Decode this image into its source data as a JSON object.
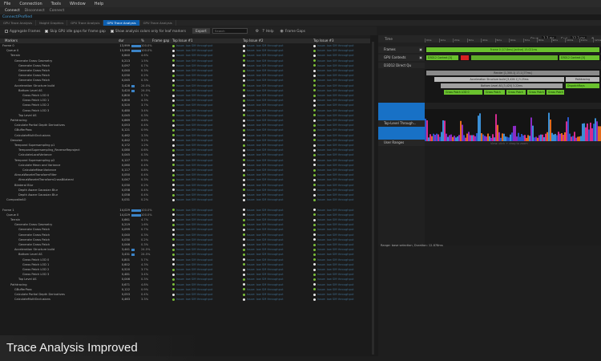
{
  "menu": [
    "File",
    "Connection",
    "Tools",
    "Window",
    "Help"
  ],
  "toolbar": [
    "Connect",
    "Disconnect",
    "Connect"
  ],
  "docbar": "Connect/Profiled",
  "tabs": [
    "GPU Trace Analysis",
    "Nsight Graphics",
    "GPU Trace Analysis",
    "GPU Trace Analysis",
    "GPU Trace Analysis"
  ],
  "options": {
    "o1": "Aggregate Frames",
    "o2": "Skip GPU idle gaps for frame gap",
    "o3": "Show analysis colors only for leaf markers",
    "export": "Export",
    "search_placeholder": "Search",
    "help": "Help",
    "footer_toggle": "Frame Gaps"
  },
  "columns": {
    "c0": "Markers",
    "c1": "dur",
    "c2": "%",
    "c3": "Frame gap",
    "c4": "Top Issue #1",
    "c5": "Top Issue #2",
    "c6": "Top Issue #3"
  },
  "tree": [
    {
      "n": "Frame 0",
      "i": 0,
      "v": "13,999",
      "p": "100.0%",
      "b": 1
    },
    {
      "n": "Queue 0",
      "i": 1,
      "v": "13,999",
      "p": "100.0%",
      "b": 1
    },
    {
      "n": "Terrain",
      "i": 2,
      "v": "0,640",
      "p": "4.6%"
    },
    {
      "n": "Generate Grass Geometry",
      "i": 3,
      "v": "0,213",
      "p": "1.5%",
      "d": "g"
    },
    {
      "n": "Generate Grass Patch",
      "i": 4,
      "v": "0,097",
      "p": "0.7%",
      "d": "w"
    },
    {
      "n": "Generate Grass Patch",
      "i": 4,
      "v": "0,040",
      "p": "0.3%",
      "d": "w"
    },
    {
      "n": "Generate Grass Patch",
      "i": 4,
      "v": "0,030",
      "p": "0.2%",
      "d": "w"
    },
    {
      "n": "Generate Grass Patch",
      "i": 4,
      "v": "0,045",
      "p": "0.3%",
      "d": "w"
    },
    {
      "n": "Acceleration Structure build",
      "i": 3,
      "v": "3,428",
      "p": "24.5%",
      "b": 0.35,
      "d": "g"
    },
    {
      "n": "Bottom Level AS",
      "i": 4,
      "v": "3,420",
      "p": "24.5%",
      "b": 0.35,
      "d": "g"
    },
    {
      "n": "Grass Patch LOD 0",
      "i": 5,
      "v": "0,800",
      "p": "5.7%",
      "d": "w"
    },
    {
      "n": "Grass Patch LOD 1",
      "i": 5,
      "v": "0,600",
      "p": "4.3%",
      "d": "w"
    },
    {
      "n": "Grass Patch LOD 2",
      "i": 5,
      "v": "0,520",
      "p": "3.7%",
      "d": "w"
    },
    {
      "n": "Grass Patch LOD 3",
      "i": 5,
      "v": "0,480",
      "p": "3.4%",
      "d": "w"
    },
    {
      "n": "Top Level AS",
      "i": 4,
      "v": "0,045",
      "p": "0.3%",
      "d": "g"
    },
    {
      "n": "Pathtracing",
      "i": 2,
      "v": "0,669",
      "p": "4.8%"
    },
    {
      "n": "Calculate Partial Depth Derivatives",
      "i": 3,
      "v": "0,053",
      "p": "0.4%",
      "d": "w"
    },
    {
      "n": "GBufferPass",
      "i": 3,
      "v": "0,121",
      "p": "0.9%",
      "d": "g"
    },
    {
      "n": "CalculateMultiOcclusions",
      "i": 3,
      "v": "0,462",
      "p": "3.3%",
      "d": "w"
    },
    {
      "n": "Denoise",
      "i": 2,
      "v": "0,442",
      "p": "3.2%"
    },
    {
      "n": "Temporal Supersampling p1",
      "i": 3,
      "v": "0,172",
      "p": "1.2%",
      "d": "w"
    },
    {
      "n": "TemporalSupersampling_ReverseReproject",
      "i": 4,
      "v": "0,080",
      "p": "0.6%",
      "d": "w"
    },
    {
      "n": "CalculateLocalVariance",
      "i": 4,
      "v": "0,045",
      "p": "0.3%",
      "d": "w"
    },
    {
      "n": "Temporal Supersampling p2",
      "i": 3,
      "v": "0,127",
      "p": "0.9%",
      "d": "w"
    },
    {
      "n": "Calculate Mean and Variance",
      "i": 4,
      "v": "0,060",
      "p": "0.4%",
      "d": "w"
    },
    {
      "n": "CalculateMeanVariance",
      "i": 5,
      "v": "0,117",
      "p": "0.8%",
      "d": "w"
    },
    {
      "n": "AtrousWaveletTransformFilter",
      "i": 3,
      "v": "0,050",
      "p": "0.4%",
      "d": "g"
    },
    {
      "n": "AtrousWaveletTransformCrossBilateral",
      "i": 4,
      "v": "0,047",
      "p": "0.3%",
      "d": "w"
    },
    {
      "n": "Bilateral Blur",
      "i": 3,
      "v": "0,030",
      "p": "0.2%",
      "d": "w"
    },
    {
      "n": "Depth Aware Gaussian Blur",
      "i": 4,
      "v": "0,058",
      "p": "0.4%",
      "d": "w"
    },
    {
      "n": "Depth Aware Gaussian Blur",
      "i": 4,
      "v": "0,058",
      "p": "0.4%",
      "d": "w"
    },
    {
      "n": "CompositeAO",
      "i": 1,
      "v": "0,031",
      "p": "0.2%"
    },
    {
      "n": "",
      "i": 0,
      "v": "",
      "p": ""
    },
    {
      "n": "Frame 1",
      "i": 0,
      "v": "14,029",
      "p": "100.0%",
      "b": 1
    },
    {
      "n": "Queue 0",
      "i": 1,
      "v": "14,029",
      "p": "100.0%",
      "b": 1
    },
    {
      "n": "Terrain",
      "i": 2,
      "v": "0,661",
      "p": "4.7%"
    },
    {
      "n": "Generate Grass Geometry",
      "i": 3,
      "v": "0,219",
      "p": "1.6%",
      "d": "g"
    },
    {
      "n": "Generate Grass Patch",
      "i": 4,
      "v": "0,099",
      "p": "0.7%",
      "d": "w"
    },
    {
      "n": "Generate Grass Patch",
      "i": 4,
      "v": "0,040",
      "p": "0.3%",
      "d": "w"
    },
    {
      "n": "Generate Grass Patch",
      "i": 4,
      "v": "0,030",
      "p": "0.2%",
      "d": "w"
    },
    {
      "n": "Generate Grass Patch",
      "i": 4,
      "v": "0,046",
      "p": "0.3%",
      "d": "w"
    },
    {
      "n": "Acceleration Structure build",
      "i": 3,
      "v": "3,441",
      "p": "24.5%",
      "b": 0.35,
      "d": "g"
    },
    {
      "n": "Bottom Level AS",
      "i": 4,
      "v": "3,431",
      "p": "24.5%",
      "b": 0.35,
      "d": "g"
    },
    {
      "n": "Grass Patch LOD 0",
      "i": 5,
      "v": "0,801",
      "p": "5.7%",
      "d": "w"
    },
    {
      "n": "Grass Patch LOD 1",
      "i": 5,
      "v": "0,602",
      "p": "4.3%",
      "d": "w"
    },
    {
      "n": "Grass Patch LOD 2",
      "i": 5,
      "v": "0,520",
      "p": "3.7%",
      "d": "w"
    },
    {
      "n": "Grass Patch LOD 3",
      "i": 5,
      "v": "0,481",
      "p": "3.4%",
      "d": "w"
    },
    {
      "n": "Top Level AS",
      "i": 4,
      "v": "0,046",
      "p": "0.3%",
      "d": "g"
    },
    {
      "n": "Pathtracing",
      "i": 2,
      "v": "0,671",
      "p": "4.8%"
    },
    {
      "n": "GBufferPass",
      "i": 3,
      "v": "0,122",
      "p": "0.9%",
      "d": "g"
    },
    {
      "n": "Calculate Partial Depth Derivatives",
      "i": 3,
      "v": "0,053",
      "p": "0.4%",
      "d": "w"
    },
    {
      "n": "CalculateMultiOcclusions",
      "i": 3,
      "v": "0,463",
      "p": "3.3%",
      "d": "w"
    }
  ],
  "issue_text": "Issue: low SM throughput",
  "timeline": {
    "header": "Time",
    "start": "Start",
    "start_val": "1.2 ms",
    "end": "End",
    "end_val": "12.2 ms",
    "ticks": [
      "0ms",
      "1ms",
      "2ms",
      "3ms",
      "4ms",
      "5ms",
      "6ms",
      "7ms",
      "8ms",
      "9ms",
      "10ms",
      "11ms",
      "12ms"
    ],
    "rows": [
      "Frames",
      "GPU Contexts",
      "D3D12 Direct Qu",
      "Workers",
      "Top-Level Through...",
      "User Ranges"
    ],
    "frame_bar": "Frame 0 (17.8ms) [active] 15.021ms",
    "ctx_a": "D3D12 Context [0]",
    "ctx_b": "D3D12 Context [1]",
    "ctx_c": "D3D12 Context [0]",
    "render_bar": "Render [1,300.1] 17.1 [77ms]",
    "accel_bar": "Acceleration Structure build [3,428.1] 3.25ms",
    "path_bar": "Pathtracing",
    "bottom_bar": "Bottom Level AS [3,420] 3.22ms",
    "top_bar": "DispatchRays",
    "grass_bars": [
      "Grass Patch LOD 0",
      "Grass Patch",
      "Grass Patch",
      "Grass Patch",
      "Grass Patch"
    ],
    "legend": "View: click + drag to zoom",
    "range_text": "Range: base selection, Duration: 12.878ms"
  },
  "caption": "Trace Analysis Improved",
  "colors": {
    "accent": "#1871c6",
    "green": "#6ac12e",
    "red": "#d72222"
  }
}
